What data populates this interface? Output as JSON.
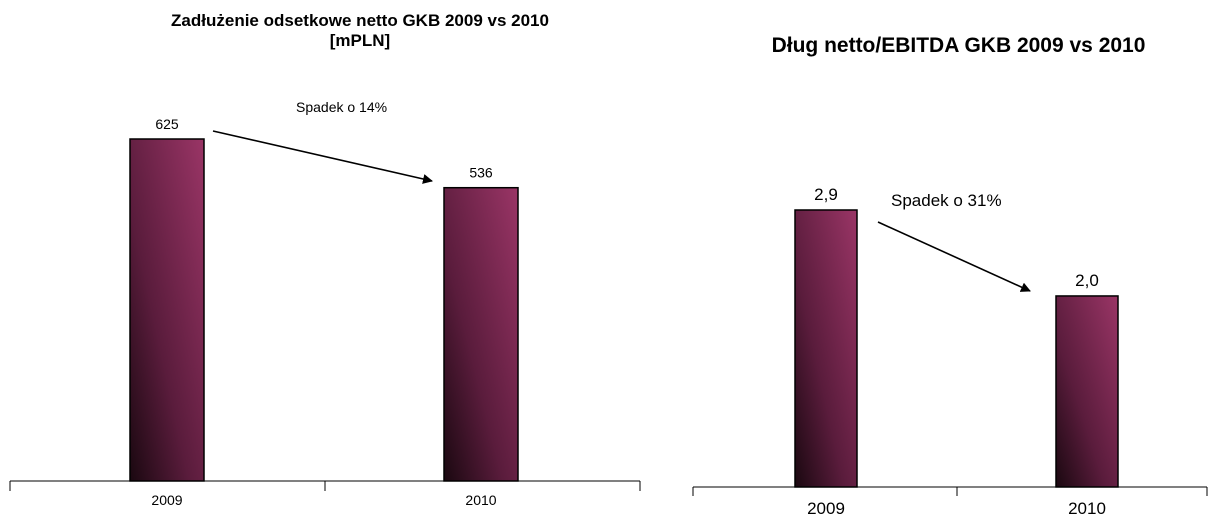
{
  "chart_data": [
    {
      "type": "bar",
      "title_line1": "Zadłużenie odsetkowe netto GKB 2009 vs 2010",
      "title_line2": "[mPLN]",
      "categories": [
        "2009",
        "2010"
      ],
      "values": [
        625,
        536
      ],
      "value_labels": [
        "625",
        "536"
      ],
      "annotation": "Spadek o 14%",
      "xlabel": "",
      "ylabel": "",
      "ylim": [
        0,
        700
      ],
      "grid": false,
      "bar_color": "#8a2e5c"
    },
    {
      "type": "bar",
      "title": "Dług netto/EBITDA GKB 2009 vs 2010",
      "categories": [
        "2009",
        "2010"
      ],
      "values": [
        2.9,
        2.0
      ],
      "value_labels": [
        "2,9",
        "2,0"
      ],
      "annotation": "Spadek o 31%",
      "xlabel": "",
      "ylabel": "",
      "ylim": [
        0,
        3.8
      ],
      "grid": false,
      "bar_color": "#8a2e5c"
    }
  ],
  "colors": {
    "bar_gradient_dark": "#1a0810",
    "bar_gradient_mid": "#5a1c3c",
    "bar_gradient_light": "#9a3566",
    "axis": "#000000"
  }
}
